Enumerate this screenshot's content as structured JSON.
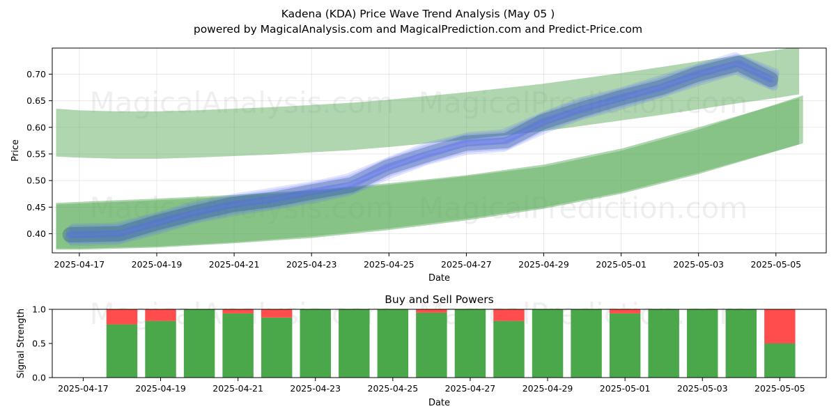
{
  "titles": {
    "main_line1": "Kadena (KDA) Price Wave Trend Analysis (May 05 )",
    "main_line2": "powered by MagicalAnalysis.com and MagicalPrediction.com and Predict-Price.com"
  },
  "watermarks": [
    "MagicalAnalysis.com",
    "MagicalPrediction.com"
  ],
  "colors": {
    "band_green": "#5fad5f",
    "wave_blue": "#5a6bff",
    "wave_dark": "#2a5a8f",
    "buy_green": "#4aa84a",
    "sell_red": "#ff4d4d"
  },
  "chart_data": [
    {
      "type": "line",
      "title": "",
      "xlabel": "Date",
      "ylabel": "Price",
      "x_range_days": [
        -0.7,
        19.3
      ],
      "ylim": [
        0.364,
        0.749
      ],
      "x_ticks": [
        "2025-04-17",
        "2025-04-19",
        "2025-04-21",
        "2025-04-23",
        "2025-04-25",
        "2025-04-27",
        "2025-04-29",
        "2025-05-01",
        "2025-05-03",
        "2025-05-05"
      ],
      "x_tick_days": [
        0,
        2,
        4,
        6,
        8,
        10,
        12,
        14,
        16,
        18
      ],
      "y_ticks": [
        "0.40",
        "0.45",
        "0.50",
        "0.55",
        "0.60",
        "0.65",
        "0.70"
      ],
      "y_tick_values": [
        0.4,
        0.45,
        0.5,
        0.55,
        0.6,
        0.65,
        0.7
      ],
      "grid": true,
      "bands": [
        {
          "name": "upper-band",
          "x_days": [
            -0.6,
            0,
            1,
            2,
            3,
            4,
            5,
            6,
            7,
            8,
            9,
            10,
            11,
            12,
            13,
            14,
            15,
            16,
            17,
            18,
            18.6
          ],
          "upper": [
            0.635,
            0.632,
            0.63,
            0.63,
            0.632,
            0.635,
            0.638,
            0.642,
            0.646,
            0.652,
            0.659,
            0.666,
            0.674,
            0.682,
            0.692,
            0.702,
            0.713,
            0.724,
            0.735,
            0.745,
            0.752
          ],
          "lower": [
            0.545,
            0.543,
            0.541,
            0.541,
            0.543,
            0.546,
            0.549,
            0.553,
            0.557,
            0.563,
            0.57,
            0.577,
            0.585,
            0.593,
            0.603,
            0.613,
            0.623,
            0.634,
            0.645,
            0.655,
            0.662
          ]
        },
        {
          "name": "lower-band-1",
          "x_days": [
            -0.6,
            0,
            2,
            4,
            6,
            8,
            10,
            12,
            14,
            16,
            18.6
          ],
          "upper": [
            0.458,
            0.46,
            0.466,
            0.473,
            0.482,
            0.495,
            0.51,
            0.53,
            0.56,
            0.6,
            0.655
          ],
          "lower": [
            0.372,
            0.372,
            0.376,
            0.384,
            0.395,
            0.41,
            0.428,
            0.45,
            0.478,
            0.515,
            0.568
          ]
        },
        {
          "name": "lower-band-2",
          "x_days": [
            -0.6,
            0,
            2,
            4,
            6,
            8,
            10,
            12,
            14,
            16,
            18.7
          ],
          "upper": [
            0.455,
            0.457,
            0.463,
            0.47,
            0.48,
            0.492,
            0.508,
            0.526,
            0.556,
            0.596,
            0.66
          ],
          "lower": [
            0.37,
            0.37,
            0.374,
            0.382,
            0.392,
            0.407,
            0.425,
            0.447,
            0.475,
            0.512,
            0.57
          ]
        }
      ],
      "wave_center": {
        "x_days": [
          -0.2,
          1,
          2,
          3,
          4,
          5,
          6,
          7,
          8,
          9,
          10,
          11,
          12,
          13,
          14,
          15,
          16,
          17,
          17.9
        ],
        "y": [
          0.398,
          0.4,
          0.42,
          0.44,
          0.455,
          0.465,
          0.478,
          0.492,
          0.525,
          0.55,
          0.57,
          0.575,
          0.61,
          0.635,
          0.655,
          0.675,
          0.7,
          0.72,
          0.69
        ]
      },
      "series_annotation": "blue/teal wave traces overlaid on green trend bands"
    },
    {
      "type": "bar",
      "title": "Buy and Sell Powers",
      "xlabel": "Date",
      "ylabel": "Signal Strength",
      "x_range_days": [
        -0.8,
        19.2
      ],
      "ylim": [
        0,
        1.0
      ],
      "x_ticks": [
        "2025-04-17",
        "2025-04-19",
        "2025-04-21",
        "2025-04-23",
        "2025-04-25",
        "2025-04-27",
        "2025-04-29",
        "2025-05-01",
        "2025-05-03",
        "2025-05-05"
      ],
      "x_tick_days": [
        0,
        2,
        4,
        6,
        8,
        10,
        12,
        14,
        16,
        18
      ],
      "y_ticks": [
        "0.0",
        "0.5",
        "1.0"
      ],
      "y_tick_values": [
        0.0,
        0.5,
        1.0
      ],
      "categories": [
        "2025-04-18",
        "2025-04-19",
        "2025-04-20",
        "2025-04-21",
        "2025-04-22",
        "2025-04-23",
        "2025-04-24",
        "2025-04-25",
        "2025-04-26",
        "2025-04-27",
        "2025-04-28",
        "2025-04-29",
        "2025-04-30",
        "2025-05-01",
        "2025-05-02",
        "2025-05-03",
        "2025-05-04",
        "2025-05-05"
      ],
      "category_days": [
        1,
        2,
        3,
        4,
        5,
        6,
        7,
        8,
        9,
        10,
        11,
        12,
        13,
        14,
        15,
        16,
        17,
        18
      ],
      "series": [
        {
          "name": "Buy",
          "values": [
            0.78,
            0.83,
            1.0,
            0.94,
            0.88,
            1.0,
            1.0,
            1.0,
            0.95,
            1.0,
            0.83,
            1.0,
            1.0,
            0.94,
            1.0,
            1.0,
            1.0,
            0.5
          ]
        },
        {
          "name": "Sell",
          "values": [
            0.22,
            0.17,
            0.0,
            0.06,
            0.12,
            0.0,
            0.0,
            0.0,
            0.05,
            0.0,
            0.17,
            0.0,
            0.0,
            0.06,
            0.0,
            0.0,
            0.0,
            0.5
          ]
        }
      ],
      "grid": false
    }
  ]
}
